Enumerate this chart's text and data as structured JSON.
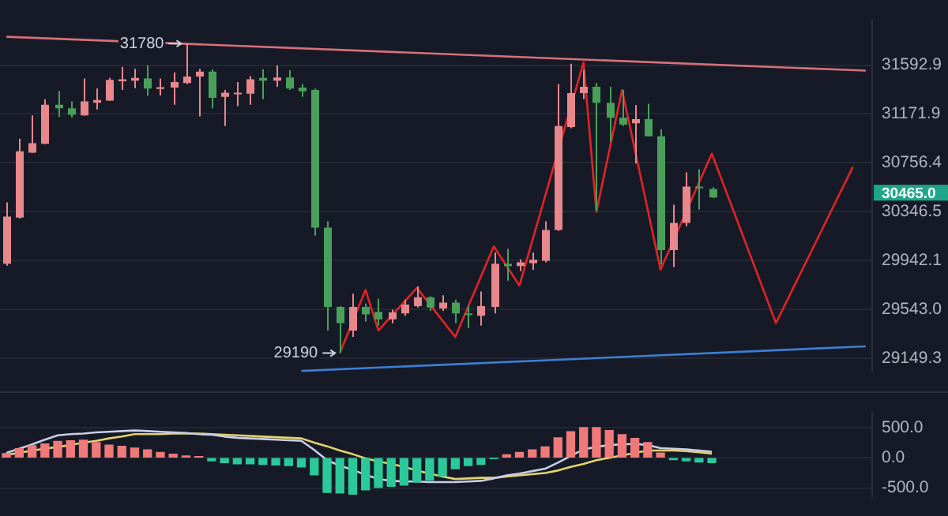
{
  "chart_data": [
    {
      "type": "candlestick",
      "categories": [
        null,
        null,
        null,
        null,
        null,
        null,
        null,
        null,
        null,
        null,
        null,
        null,
        null,
        null,
        null,
        null,
        null,
        null,
        null,
        null,
        null,
        null,
        null,
        null,
        null,
        null,
        null,
        null,
        null,
        null,
        null,
        null,
        null,
        null,
        null,
        null,
        null,
        null,
        null,
        null,
        null,
        null,
        null,
        null,
        null,
        null,
        null,
        null,
        null,
        null,
        null,
        null,
        null,
        null,
        null,
        null,
        null,
        null,
        null,
        null,
        null,
        null,
        null,
        null,
        null,
        null,
        null,
        null
      ],
      "ohlc": [
        [
          29916,
          30425,
          29900,
          30306
        ],
        [
          30297,
          30961,
          30290,
          30854
        ],
        [
          30842,
          31160,
          30840,
          30922
        ],
        [
          30917,
          31299,
          30915,
          31251
        ],
        [
          31251,
          31370,
          31148,
          31220
        ],
        [
          31220,
          31279,
          31140,
          31164
        ],
        [
          31160,
          31477,
          31156,
          31279
        ],
        [
          31268,
          31390,
          31211,
          31291
        ],
        [
          31287,
          31482,
          31285,
          31465
        ],
        [
          31453,
          31577,
          31378,
          31470
        ],
        [
          31458,
          31561,
          31394,
          31482
        ],
        [
          31477,
          31589,
          31327,
          31390
        ],
        [
          31387,
          31477,
          31330,
          31402
        ],
        [
          31399,
          31530,
          31251,
          31446
        ],
        [
          31438,
          31780,
          31430,
          31494
        ],
        [
          31494,
          31561,
          31152,
          31537
        ],
        [
          31537,
          31557,
          31220,
          31310
        ],
        [
          31319,
          31378,
          31068,
          31355
        ],
        [
          31347,
          31446,
          31239,
          31355
        ],
        [
          31346,
          31498,
          31251,
          31470
        ],
        [
          31482,
          31557,
          31299,
          31458
        ],
        [
          31458,
          31589,
          31406,
          31486
        ],
        [
          31486,
          31549,
          31378,
          31390
        ],
        [
          31399,
          31430,
          31319,
          31366
        ],
        [
          31378,
          31390,
          30147,
          30214
        ],
        [
          30214,
          30266,
          29372,
          29563
        ],
        [
          29563,
          29570,
          29190,
          29432
        ],
        [
          29372,
          29670,
          29320,
          29563
        ],
        [
          29563,
          29590,
          29444,
          29503
        ],
        [
          29523,
          29630,
          29412,
          29463
        ],
        [
          29463,
          29540,
          29430,
          29519
        ],
        [
          29511,
          29622,
          29491,
          29582
        ],
        [
          29570,
          29730,
          29558,
          29642
        ],
        [
          29642,
          29650,
          29531,
          29558
        ],
        [
          29551,
          29658,
          29531,
          29599
        ],
        [
          29599,
          29622,
          29432,
          29511
        ],
        [
          29511,
          29570,
          29392,
          29499
        ],
        [
          29491,
          29689,
          29412,
          29570
        ],
        [
          29563,
          30008,
          29511,
          29916
        ],
        [
          29916,
          30040,
          29777,
          29897
        ],
        [
          29897,
          29952,
          29856,
          29928
        ],
        [
          29920,
          30008,
          29865,
          29948
        ],
        [
          29940,
          30266,
          29928,
          30195
        ],
        [
          30195,
          31430,
          30186,
          31068
        ],
        [
          31060,
          31605,
          31050,
          31351
        ],
        [
          31351,
          31549,
          31299,
          31406
        ],
        [
          31406,
          31438,
          30353,
          31268
        ],
        [
          31268,
          31406,
          30934,
          31140
        ],
        [
          31140,
          31378,
          31068,
          31080
        ],
        [
          31092,
          31247,
          30750,
          31128
        ],
        [
          31128,
          31259,
          30981,
          30981
        ],
        [
          30981,
          31041,
          29909,
          30028
        ],
        [
          30028,
          30405,
          29888,
          30254
        ],
        [
          30254,
          30675,
          30225,
          30556
        ],
        [
          30556,
          30702,
          30365,
          30544
        ],
        [
          30536,
          30552,
          30460,
          30465
        ],
        null,
        null,
        null,
        null,
        null,
        null,
        null,
        null,
        null,
        null,
        null,
        null
      ],
      "colors": [
        "#e8878c",
        "#e8878c",
        "#e8878c",
        "#e8878c",
        "#49a05a",
        "#49a05a",
        "#e8878c",
        "#e8878c",
        "#e8878c",
        "#e8878c",
        "#e8878c",
        "#49a05a",
        "#e8878c",
        "#e8878c",
        "#e8878c",
        "#e8878c",
        "#49a05a",
        "#e8878c",
        "#e8878c",
        "#e8878c",
        "#49a05a",
        "#e8878c",
        "#49a05a",
        "#49a05a",
        "#49a05a",
        "#49a05a",
        "#49a05a",
        "#e8878c",
        "#49a05a",
        "#49a05a",
        "#e8878c",
        "#e8878c",
        "#e8878c",
        "#49a05a",
        "#e8878c",
        "#49a05a",
        "#49a05a",
        "#e8878c",
        "#e8878c",
        "#49a05a",
        "#e8878c",
        "#e8878c",
        "#e8878c",
        "#e8878c",
        "#e8878c",
        "#e8878c",
        "#49a05a",
        "#49a05a",
        "#49a05a",
        "#e8878c",
        "#49a05a",
        "#49a05a",
        "#e8878c",
        "#e8878c",
        "#49a05a",
        "#49a05a",
        null,
        null,
        null,
        null,
        null,
        null,
        null,
        null,
        null,
        null,
        null,
        null
      ],
      "series": [
        {
          "type": "line",
          "color": "#d9707a",
          "values": [
            31840,
            null,
            null,
            null,
            null,
            null,
            null,
            null,
            null,
            null,
            null,
            null,
            null,
            null,
            null,
            null,
            null,
            null,
            null,
            null,
            null,
            null,
            null,
            null,
            null,
            null,
            null,
            null,
            null,
            null,
            null,
            null,
            null,
            null,
            null,
            null,
            null,
            null,
            null,
            null,
            null,
            null,
            null,
            null,
            null,
            null,
            null,
            null,
            null,
            null,
            null,
            null,
            null,
            null,
            null,
            null,
            null,
            null,
            null,
            null,
            null,
            null,
            null,
            null,
            null,
            null,
            null,
            31545
          ]
        },
        {
          "type": "line",
          "color": "#3d7fd6",
          "values": [
            null,
            null,
            null,
            null,
            null,
            null,
            null,
            null,
            null,
            null,
            null,
            null,
            null,
            null,
            null,
            null,
            null,
            null,
            null,
            null,
            null,
            null,
            null,
            29048,
            null,
            null,
            null,
            null,
            null,
            null,
            null,
            null,
            null,
            null,
            null,
            null,
            null,
            null,
            null,
            null,
            null,
            null,
            null,
            null,
            null,
            null,
            null,
            null,
            null,
            null,
            null,
            null,
            null,
            null,
            null,
            null,
            null,
            null,
            null,
            null,
            null,
            null,
            null,
            null,
            null,
            null,
            null,
            29245
          ]
        },
        {
          "type": "line",
          "color": "#e02424",
          "values": [
            null,
            null,
            null,
            null,
            null,
            null,
            null,
            null,
            null,
            null,
            null,
            null,
            null,
            null,
            null,
            null,
            null,
            null,
            null,
            null,
            null,
            null,
            null,
            null,
            null,
            null,
            29193,
            null,
            29701,
            29372,
            null,
            null,
            29718,
            null,
            null,
            29320,
            null,
            null,
            30059,
            null,
            29737,
            null,
            null,
            null,
            null,
            31617,
            30345,
            null,
            31378,
            null,
            null,
            29868,
            null,
            null,
            null,
            30834,
            null,
            null,
            null,
            null,
            29432,
            null,
            null,
            null,
            null,
            null,
            30723,
            null
          ]
        }
      ],
      "ylim": [
        29040,
        31992
      ],
      "log": "y",
      "yticks": [
        31592.9,
        31171.9,
        30756.4,
        30346.5,
        29942.1,
        {
          "value": 29543,
          "label": "29543.0"
        },
        29149.3
      ],
      "tick_labels": "y",
      "grid": "y",
      "annotations": [
        {
          "text": "31780",
          "y": 31780
        },
        {
          "text": "29190",
          "y": 29190
        },
        "30465.0"
      ]
    },
    {
      "type": "bar",
      "categories": [
        null,
        null,
        null,
        null,
        null,
        null,
        null,
        null,
        null,
        null,
        null,
        null,
        null,
        null,
        null,
        null,
        null,
        null,
        null,
        null,
        null,
        null,
        null,
        null,
        null,
        null,
        null,
        null,
        null,
        null,
        null,
        null,
        null,
        null,
        null,
        null,
        null,
        null,
        null,
        null,
        null,
        null,
        null,
        null,
        null,
        null,
        null,
        null,
        null,
        null,
        null,
        null,
        null,
        null,
        null,
        null,
        null,
        null,
        null,
        null,
        null,
        null,
        null,
        null,
        null,
        null,
        null,
        null
      ],
      "series": [
        {
          "type": "bar",
          "values": [
            70,
            150,
            200,
            230,
            270,
            280,
            290,
            250,
            210,
            190,
            160,
            130,
            90,
            60,
            30,
            20,
            -50,
            -80,
            -100,
            -100,
            -110,
            -120,
            -130,
            -150,
            -280,
            -570,
            -580,
            -600,
            -530,
            -490,
            -470,
            -450,
            -400,
            -370,
            -300,
            -180,
            -130,
            -110,
            -10,
            50,
            90,
            130,
            180,
            330,
            430,
            500,
            500,
            450,
            380,
            320,
            250,
            80,
            -30,
            -50,
            -70,
            -80,
            null,
            null,
            null,
            null,
            null,
            null,
            null,
            null,
            null,
            null,
            null,
            null
          ],
          "colors": [
            "#f07a7a",
            "#f07a7a",
            "#f07a7a",
            "#f07a7a",
            "#f07a7a",
            "#f07a7a",
            "#f07a7a",
            "#f07a7a",
            "#f07a7a",
            "#f07a7a",
            "#f07a7a",
            "#f07a7a",
            "#f07a7a",
            "#f07a7a",
            "#f07a7a",
            "#f07a7a",
            "#2bc99a",
            "#2bc99a",
            "#2bc99a",
            "#2bc99a",
            "#2bc99a",
            "#2bc99a",
            "#2bc99a",
            "#2bc99a",
            "#2bc99a",
            "#2bc99a",
            "#2bc99a",
            "#2bc99a",
            "#2bc99a",
            "#2bc99a",
            "#2bc99a",
            "#2bc99a",
            "#2bc99a",
            "#2bc99a",
            "#2bc99a",
            "#2bc99a",
            "#2bc99a",
            "#2bc99a",
            "#2bc99a",
            "#f07a7a",
            "#f07a7a",
            "#f07a7a",
            "#f07a7a",
            "#f07a7a",
            "#f07a7a",
            "#f07a7a",
            "#f07a7a",
            "#f07a7a",
            "#f07a7a",
            "#f07a7a",
            "#f07a7a",
            "#f07a7a",
            "#2bc99a",
            "#2bc99a",
            "#2bc99a",
            "#2bc99a",
            null,
            null,
            null,
            null,
            null,
            null,
            null,
            null,
            null,
            null,
            null,
            null
          ]
        },
        {
          "type": "line",
          "color": "#c9cde6",
          "values": [
            80,
            150,
            220,
            300,
            370,
            390,
            400,
            420,
            430,
            440,
            450,
            440,
            430,
            420,
            410,
            390,
            380,
            350,
            330,
            320,
            310,
            300,
            290,
            280,
            130,
            -40,
            -130,
            -200,
            -280,
            -350,
            -380,
            -390,
            -390,
            -400,
            -400,
            -400,
            -390,
            -380,
            -340,
            -290,
            -260,
            -220,
            -180,
            -80,
            30,
            140,
            180,
            210,
            220,
            230,
            210,
            160,
            150,
            140,
            120,
            100,
            null,
            null,
            null,
            null,
            null,
            null,
            null,
            null,
            null,
            null,
            null,
            null
          ]
        },
        {
          "type": "line",
          "color": "#e3d36b",
          "values": [
            50,
            80,
            120,
            150,
            180,
            210,
            250,
            280,
            320,
            350,
            390,
            390,
            390,
            400,
            400,
            400,
            390,
            380,
            370,
            360,
            350,
            340,
            330,
            320,
            250,
            190,
            120,
            60,
            -10,
            -60,
            -100,
            -150,
            -210,
            -260,
            -310,
            -350,
            -340,
            -330,
            -330,
            -310,
            -290,
            -270,
            -250,
            -210,
            -150,
            -100,
            -40,
            0,
            40,
            80,
            120,
            120,
            120,
            110,
            90,
            70,
            null,
            null,
            null,
            null,
            null,
            null,
            null,
            null,
            null,
            null,
            null,
            null
          ]
        }
      ],
      "ylim": [
        -640,
        750
      ],
      "yticks": [
        {
          "value": 500,
          "label": "500.0"
        },
        {
          "value": 0,
          "label": "0.0"
        },
        {
          "value": -500,
          "label": "-500.0"
        }
      ],
      "tick_labels": "y",
      "grid": "y"
    }
  ]
}
